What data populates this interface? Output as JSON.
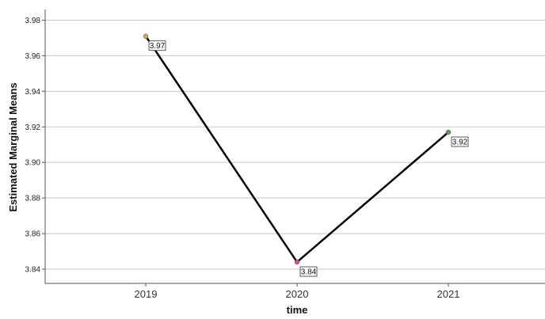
{
  "chart_data": {
    "type": "line",
    "categories": [
      "2019",
      "2020",
      "2021"
    ],
    "values": [
      3.971,
      3.844,
      3.917
    ],
    "data_labels": [
      "3.97",
      "3.84",
      "3.92"
    ],
    "point_colors": [
      "#d4a05a",
      "#d4508a",
      "#5a9a5a"
    ],
    "line_color": "#000000",
    "xlabel": "time",
    "ylabel": "Estimated Marginal Means",
    "ylim": [
      3.832,
      3.986
    ],
    "yticks": [
      3.84,
      3.86,
      3.88,
      3.9,
      3.92,
      3.94,
      3.96,
      3.98
    ],
    "ytick_labels": [
      "3.84",
      "3.86",
      "3.88",
      "3.90",
      "3.92",
      "3.94",
      "3.96",
      "3.98"
    ],
    "grid": true
  }
}
